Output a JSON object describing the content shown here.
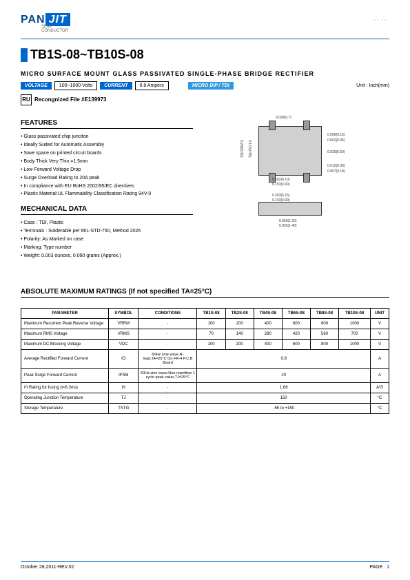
{
  "logo": {
    "brand_left": "PAN",
    "brand_right": "JIT",
    "sub": "SEMI\nCONDUCTOR"
  },
  "title": "TB1S-08~TB10S-08",
  "subtitle": "MICRO SURFACE MOUNT GLASS PASSIVATED SINGLE-PHASE BRIDGE RECTIFIER",
  "tags": {
    "voltage_label": "VOLTAGE",
    "voltage_value": "100~1000 Volts",
    "current_label": "CURRENT",
    "current_value": "0.8 Ampers",
    "package_label": "MICRO DIP / TDI",
    "unit_label": "Unit : Inch(mm)"
  },
  "recognized": "Recongnized File #E139973",
  "sections": {
    "features": "FEATURES",
    "mechanical": "MECHANICAL DATA",
    "ratings": "ABSOLUTE MAXIMUM RATINGS (If not specified TA=25°C)"
  },
  "features": [
    "Glass passivated chip junciton",
    "Ideally Suited for Automatic Assembly",
    "Save space on printed circuit boards",
    "Body Thick Very Thin =1.5mm",
    "Low Forward Voltage Drop",
    "Surge Overload Rating to 20A peak",
    "In compliance with EU RoHS 2002/95/EC directives",
    "Plastic Material:UL Flammability Classification Rating 94V-0"
  ],
  "mechanical": [
    "Case : TDI, Plastic",
    "Terminals : Solderable per MIL-STD-750, Method 2026",
    "Polarity: As Marked on case",
    "Marking: Type number",
    "Weight: 0.003 ounces, 0.090 grams (Approx.)"
  ],
  "dims": {
    "d1": "0.028(0.7)",
    "d2": "0.006(0.15)",
    "d3": "0.002(0.05)",
    "d4": "0.020(0.50)",
    "d5": "0.012(0.30)",
    "d6": "0.007(0.18)",
    "d7": "0.162(4.10)",
    "d8": "0.153(3.90)",
    "d9": "0.203(5.15)",
    "d10": "0.193(4.90)",
    "d11": "0.268(6.80)",
    "d12": "0.179(4.55)",
    "d13": "0.059(1.50)",
    "d14": "0.055(1.40)"
  },
  "table": {
    "headers": [
      "PARAMETER",
      "SYMBOL",
      "CONDITIONS",
      "TB1S-08",
      "TB2S-08",
      "TB4S-08",
      "TB6S-08",
      "TB8S-08",
      "TB10S-08",
      "UNIT"
    ],
    "rows": [
      {
        "param": "Maximum Recurrent Peak Reverse Voltage",
        "symbol": "VRRM",
        "cond": "-",
        "vals": [
          "100",
          "200",
          "400",
          "600",
          "800",
          "1000"
        ],
        "unit": "V",
        "span": false
      },
      {
        "param": "Maximum RMS Voltage",
        "symbol": "VRMS",
        "cond": "-",
        "vals": [
          "70",
          "140",
          "280",
          "420",
          "560",
          "700"
        ],
        "unit": "V",
        "span": false
      },
      {
        "param": "Maximum DC Blocking Voltage",
        "symbol": "VDC",
        "cond": "-",
        "vals": [
          "100",
          "200",
          "400",
          "600",
          "800",
          "1000"
        ],
        "unit": "V",
        "span": false
      },
      {
        "param": "Average Rectified Forward Current",
        "symbol": "IO",
        "cond": "60Hz sine wave,R-load,TA=25°C On FR-4 P.C.B Board",
        "vals": [
          "0.8"
        ],
        "unit": "A",
        "span": true
      },
      {
        "param": "Peak Surge Forward Current",
        "symbol": "IFSM",
        "cond": "60Hz sine wave,Non-repetitive 1 cycle peak value,TJ=25°C",
        "vals": [
          "20"
        ],
        "unit": "A",
        "span": true
      },
      {
        "param": "I²t Rating for fusing (t<8.3ms)",
        "symbol": "I²t",
        "cond": "-",
        "vals": [
          "1.66"
        ],
        "unit": "A²S",
        "span": true
      },
      {
        "param": "Operating Junction Temperature",
        "symbol": "TJ",
        "cond": "-",
        "vals": [
          "150"
        ],
        "unit": "°C",
        "span": true
      },
      {
        "param": "Storage Temperature",
        "symbol": "TSTG",
        "cond": "-",
        "vals": [
          "-55 to +150"
        ],
        "unit": "°C",
        "span": true
      }
    ]
  },
  "footer": {
    "date": "October 28,2011-REV.02",
    "page": "PAGE . 1"
  },
  "colors": {
    "blue": "#0066cc",
    "gray": "#d0d0d0"
  }
}
